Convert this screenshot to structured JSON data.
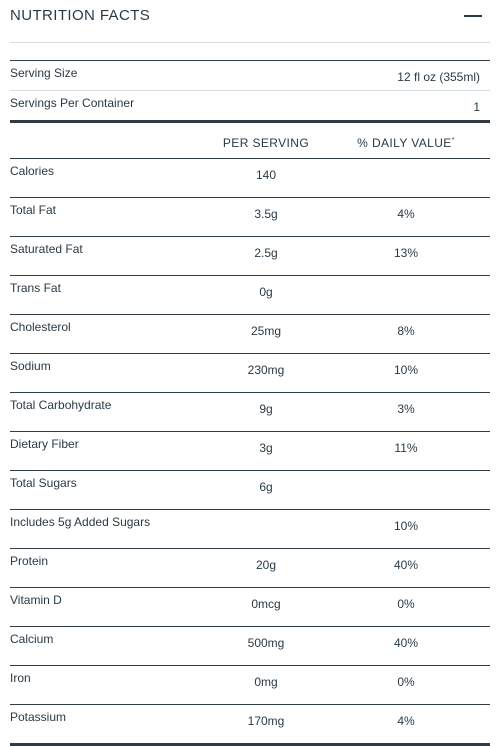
{
  "header": {
    "title": "NUTRITION FACTS",
    "collapse_icon": "minus-icon"
  },
  "serving": {
    "size_label": "Serving Size",
    "size_value": "12 fl oz (355ml)",
    "per_container_label": "Servings Per Container",
    "per_container_value": "1"
  },
  "table": {
    "col_per_serving": "PER SERVING",
    "col_daily_value": "% DAILY VALUE",
    "daily_value_mark": "*",
    "rows": [
      {
        "name": "Calories",
        "per": "140",
        "dv": ""
      },
      {
        "name": "Total Fat",
        "per": "3.5g",
        "dv": "4%"
      },
      {
        "name": "Saturated Fat",
        "per": "2.5g",
        "dv": "13%"
      },
      {
        "name": "Trans Fat",
        "per": "0g",
        "dv": ""
      },
      {
        "name": "Cholesterol",
        "per": "25mg",
        "dv": "8%"
      },
      {
        "name": "Sodium",
        "per": "230mg",
        "dv": "10%"
      },
      {
        "name": "Total Carbohydrate",
        "per": "9g",
        "dv": "3%"
      },
      {
        "name": "Dietary Fiber",
        "per": "3g",
        "dv": "11%"
      },
      {
        "name": "Total Sugars",
        "per": "6g",
        "dv": ""
      },
      {
        "name": "Includes 5g Added Sugars",
        "per": "",
        "dv": "10%"
      },
      {
        "name": "Protein",
        "per": "20g",
        "dv": "40%"
      },
      {
        "name": "Vitamin D",
        "per": "0mcg",
        "dv": "0%"
      },
      {
        "name": "Calcium",
        "per": "500mg",
        "dv": "40%"
      },
      {
        "name": "Iron",
        "per": "0mg",
        "dv": "0%"
      },
      {
        "name": "Potassium",
        "per": "170mg",
        "dv": "4%"
      }
    ]
  }
}
